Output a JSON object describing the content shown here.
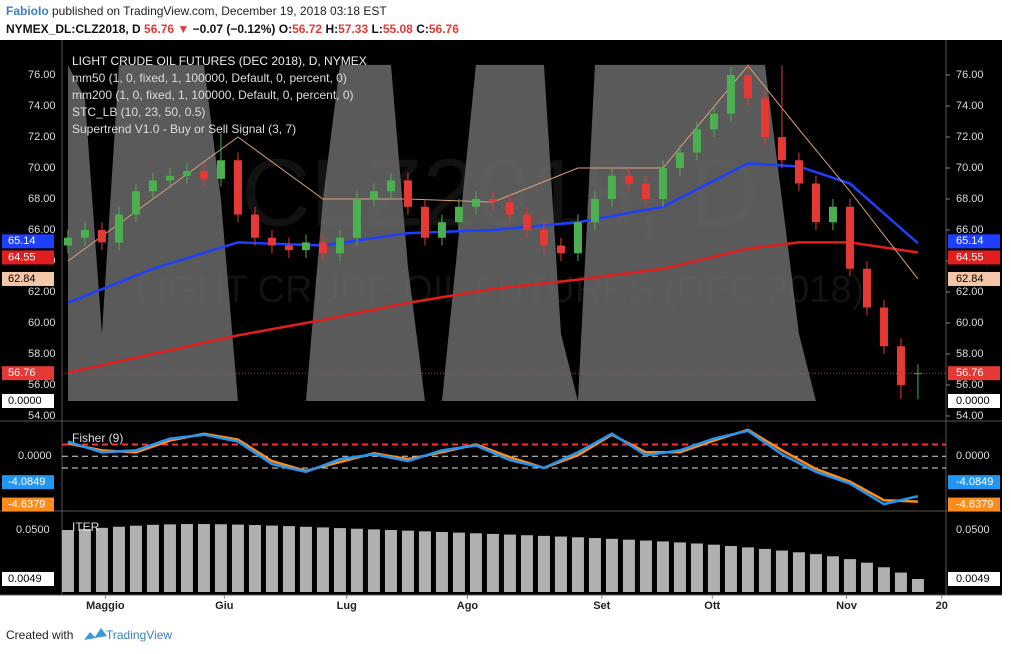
{
  "header": {
    "author": "FabioIo",
    "published": " published on TradingView.com, December 19, 2018 03:18 EST",
    "symbol": "NYMEX_DL:CLZ2018, D",
    "price": "56.76",
    "arrow": "▼",
    "change": "−0.07 (−0.12%)",
    "o_key": "O:",
    "o_val": "56.72",
    "h_key": "H:",
    "h_val": "57.33",
    "l_key": "L:",
    "l_val": "55.08",
    "c_key": "C:",
    "c_val": "56.76"
  },
  "footer": {
    "created": "Created with",
    "brand": "TradingView"
  },
  "chart_data": {
    "type": "candlestick",
    "title": "LIGHT CRUDE OIL FUTURES (DEC 2018), D, NYMEX",
    "watermark": [
      "CLZ2018, D",
      "LIGHT CRUDE OIL FUTURES (DEC 2018)"
    ],
    "up_color": "#4caf50",
    "down_color": "#e53935",
    "xlim": [
      -0.35,
      51.65
    ],
    "xticks": [
      {
        "value": 2.2,
        "label": "Maggio"
      },
      {
        "value": 9.2,
        "label": "Giu"
      },
      {
        "value": 16.4,
        "label": "Lug"
      },
      {
        "value": 23.5,
        "label": "Ago"
      },
      {
        "value": 31.4,
        "label": "Set"
      },
      {
        "value": 37.9,
        "label": "Ott"
      },
      {
        "value": 45.8,
        "label": "Nov"
      },
      {
        "value": 51.4,
        "label": "20"
      }
    ],
    "ylim": [
      53.74,
      78.26
    ],
    "yticks": [
      {
        "value": 54,
        "label": "54.00"
      },
      {
        "value": 56,
        "label": "56.00"
      },
      {
        "value": 58,
        "label": "58.00"
      },
      {
        "value": 60,
        "label": "60.00"
      },
      {
        "value": 62,
        "label": "62.00"
      },
      {
        "value": 64,
        "label": "64.00"
      },
      {
        "value": 66,
        "label": "66.00"
      },
      {
        "value": 68,
        "label": "68.00"
      },
      {
        "value": 70,
        "label": "70.00"
      },
      {
        "value": 72,
        "label": "72.00"
      },
      {
        "value": 74,
        "label": "74.00"
      },
      {
        "value": 76,
        "label": "76.00"
      }
    ],
    "open": [
      65.0,
      65.5,
      66.0,
      65.2,
      67.0,
      68.5,
      69.2,
      69.5,
      69.8,
      69.3,
      70.5,
      67.0,
      65.5,
      65.0,
      64.7,
      65.2,
      64.5,
      65.5,
      68.0,
      68.5,
      69.2,
      67.5,
      65.5,
      66.5,
      67.5,
      68.0,
      67.8,
      67.0,
      66.0,
      65.0,
      64.5,
      66.5,
      68.0,
      69.5,
      69.0,
      68.0,
      70.0,
      71.0,
      72.5,
      73.5,
      76.0,
      74.5,
      72.0,
      70.5,
      69.0,
      66.5,
      67.5,
      63.5,
      61.0,
      58.5,
      56.72
    ],
    "high": [
      66.0,
      66.5,
      66.5,
      67.5,
      69.0,
      69.7,
      70.0,
      70.3,
      70.3,
      72.2,
      71.0,
      67.5,
      66.0,
      65.5,
      65.7,
      65.7,
      66.0,
      68.5,
      69.0,
      69.7,
      69.7,
      68.0,
      67.0,
      68.0,
      68.5,
      68.5,
      68.3,
      67.5,
      66.5,
      65.5,
      67.0,
      68.5,
      70.0,
      70.0,
      69.5,
      70.5,
      71.5,
      73.0,
      74.0,
      76.5,
      76.7,
      75.0,
      76.6,
      71.0,
      69.5,
      68.0,
      68.0,
      64.0,
      61.5,
      59.0,
      57.33
    ],
    "low": [
      64.5,
      65.0,
      64.7,
      64.7,
      66.5,
      68.0,
      68.7,
      69.0,
      68.8,
      68.8,
      66.5,
      65.0,
      64.5,
      64.2,
      64.2,
      64.0,
      64.0,
      65.0,
      67.5,
      68.0,
      67.0,
      65.0,
      65.0,
      66.0,
      67.0,
      67.3,
      66.5,
      65.5,
      64.5,
      64.0,
      64.0,
      66.0,
      67.5,
      68.5,
      67.5,
      67.5,
      69.5,
      70.5,
      72.0,
      73.0,
      74.0,
      71.5,
      70.0,
      68.5,
      66.0,
      66.0,
      63.0,
      60.5,
      58.0,
      55.1,
      55.08
    ],
    "close": [
      65.5,
      66.0,
      65.2,
      67.0,
      68.5,
      69.2,
      69.5,
      69.8,
      69.3,
      70.5,
      67.0,
      65.5,
      65.0,
      64.7,
      65.2,
      64.5,
      65.5,
      68.0,
      68.5,
      69.2,
      67.5,
      65.5,
      66.5,
      67.5,
      68.0,
      67.8,
      67.0,
      66.0,
      65.0,
      64.5,
      66.5,
      68.0,
      69.5,
      69.0,
      68.0,
      70.0,
      71.0,
      72.5,
      73.5,
      76.0,
      74.5,
      72.0,
      70.5,
      69.0,
      66.5,
      67.5,
      63.5,
      61.0,
      58.5,
      56.0,
      56.76
    ],
    "series": [
      {
        "name": "mm50 (1, 0, fixed, 1, 100000, Default, 0, percent, 0)",
        "color": "#1f3fff",
        "x": [
          0,
          5,
          10,
          15,
          20,
          25,
          30,
          35,
          40,
          43,
          46,
          50
        ],
        "values": [
          61.3,
          63.5,
          65.2,
          65.0,
          65.8,
          66.0,
          66.5,
          67.5,
          70.3,
          70.1,
          69.0,
          65.14
        ]
      },
      {
        "name": "mm200 (1, 0, fixed, 1, 100000, Default, 0, percent, 0)",
        "color": "#e01e1e",
        "x": [
          0,
          5,
          10,
          15,
          20,
          25,
          30,
          35,
          40,
          43,
          46,
          50
        ],
        "values": [
          56.8,
          58.0,
          59.2,
          60.2,
          61.3,
          62.2,
          62.8,
          63.5,
          64.8,
          65.2,
          65.2,
          64.55
        ]
      },
      {
        "name": "Supertrend V1.0 - Buy or Sell Signal (3, 7)",
        "color": "#d9a07a",
        "x": [
          0,
          5,
          10,
          15,
          20,
          25,
          30,
          35,
          40,
          43,
          46,
          50
        ],
        "values": [
          64.0,
          68.0,
          72.0,
          68.0,
          68.0,
          67.8,
          70.0,
          70.0,
          76.6,
          72.5,
          68.5,
          62.84
        ]
      }
    ],
    "stc": {
      "name": "STC_LB (10, 23, 50, 0.5)",
      "color": "#6a6a6a",
      "ylim": [
        -5.65,
        107.4
      ],
      "values": [
        100,
        90,
        20,
        100,
        100,
        100,
        100,
        100,
        100,
        60,
        0,
        0,
        0,
        0,
        0,
        60,
        100,
        100,
        100,
        100,
        40,
        0,
        0,
        50,
        100,
        100,
        100,
        100,
        100,
        20,
        0,
        100,
        100,
        100,
        100,
        100,
        100,
        100,
        100,
        100,
        100,
        100,
        60,
        20,
        0,
        0,
        0,
        0,
        0,
        0,
        0
      ],
      "value_labels": [
        null,
        null,
        null,
        null,
        null,
        null,
        null,
        null,
        null,
        null,
        null,
        null,
        null,
        null,
        null,
        null,
        null,
        null,
        null,
        null,
        null,
        null,
        null,
        null,
        null,
        null,
        null,
        null,
        null,
        null,
        null,
        null,
        null,
        null,
        null,
        null,
        null,
        null,
        null,
        null,
        null,
        null,
        null,
        null,
        null,
        null,
        null,
        null,
        null,
        null,
        "0.0000"
      ]
    },
    "fisher": {
      "title": "Fisher (9)",
      "ylim": [
        -5.5,
        3.5
      ],
      "yticks": [
        {
          "value": 0,
          "label": "0.0000"
        }
      ],
      "levels": [
        {
          "value": 1.2,
          "color": "#ff3030"
        },
        {
          "value": 0,
          "color": "#dddddd"
        },
        {
          "value": -1.2,
          "color": "#dddddd"
        }
      ],
      "x": [
        0,
        2,
        4,
        6,
        8,
        10,
        12,
        14,
        16,
        18,
        20,
        22,
        24,
        26,
        28,
        30,
        32,
        34,
        36,
        38,
        40,
        42,
        44,
        46,
        48,
        50
      ],
      "series": [
        {
          "color": "#2196f3",
          "values": [
            1.5,
            0.4,
            0.6,
            1.8,
            2.2,
            1.5,
            -0.8,
            -1.6,
            -0.3,
            0.2,
            -0.5,
            0.6,
            1.1,
            -0.4,
            -1.2,
            0.4,
            2.3,
            0.1,
            0.6,
            1.8,
            2.6,
            0.2,
            -1.6,
            -2.8,
            -4.9,
            -4.0849
          ]
        },
        {
          "color": "#ff8c1a",
          "values": [
            1.3,
            0.6,
            0.4,
            1.6,
            2.3,
            1.7,
            -0.5,
            -1.5,
            -0.6,
            0.3,
            -0.3,
            0.4,
            1.2,
            -0.1,
            -1.2,
            0.1,
            2.2,
            0.4,
            0.4,
            1.6,
            2.7,
            0.6,
            -1.3,
            -2.6,
            -4.5,
            -4.6379
          ]
        }
      ]
    },
    "iter": {
      "title": "ITER",
      "color": "#b0b0b0",
      "ylim": [
        -0.0071,
        0.0666
      ],
      "yticks": [
        {
          "value": 0.05,
          "label": "0.0500"
        }
      ],
      "values": [
        0.05,
        0.051,
        0.052,
        0.053,
        0.054,
        0.0548,
        0.0552,
        0.0555,
        0.0555,
        0.0553,
        0.055,
        0.0546,
        0.0541,
        0.0536,
        0.053,
        0.0524,
        0.0518,
        0.0512,
        0.0506,
        0.05,
        0.0494,
        0.0488,
        0.0482,
        0.0476,
        0.047,
        0.0464,
        0.0458,
        0.0452,
        0.0446,
        0.044,
        0.0433,
        0.0426,
        0.0419,
        0.0411,
        0.0403,
        0.0395,
        0.0386,
        0.0376,
        0.0365,
        0.0353,
        0.034,
        0.0326,
        0.0311,
        0.0295,
        0.0278,
        0.0258,
        0.0232,
        0.0199,
        0.0157,
        0.0108,
        0.0049
      ]
    }
  }
}
